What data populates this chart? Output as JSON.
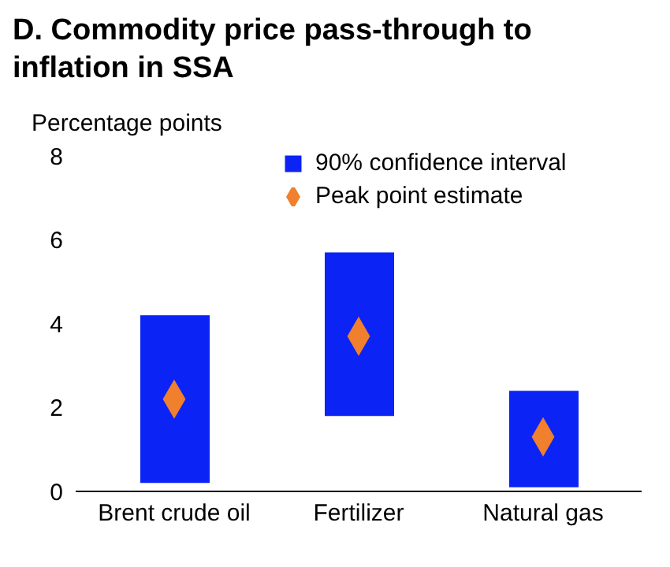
{
  "chart_data": {
    "type": "bar",
    "title": "D. Commodity price pass-through to inflation in SSA",
    "ylabel": "Percentage points",
    "categories": [
      "Brent crude oil",
      "Fertilizer",
      "Natural gas"
    ],
    "series": [
      {
        "name": "90% confidence interval",
        "type": "bar",
        "color": "#0b24f5",
        "base": [
          0.2,
          1.8,
          0.1
        ],
        "values": [
          4.0,
          3.9,
          2.3
        ]
      },
      {
        "name": "Peak point estimate",
        "type": "scatter",
        "color": "#f07f2e",
        "marker": "diamond",
        "x": [
          "Brent crude oil",
          "Fertilizer",
          "Natural gas"
        ],
        "values": [
          2.2,
          3.7,
          1.3
        ]
      }
    ],
    "ylim": [
      0,
      8
    ],
    "yticks": [
      0,
      2,
      4,
      6,
      8
    ],
    "legend": "top right"
  }
}
